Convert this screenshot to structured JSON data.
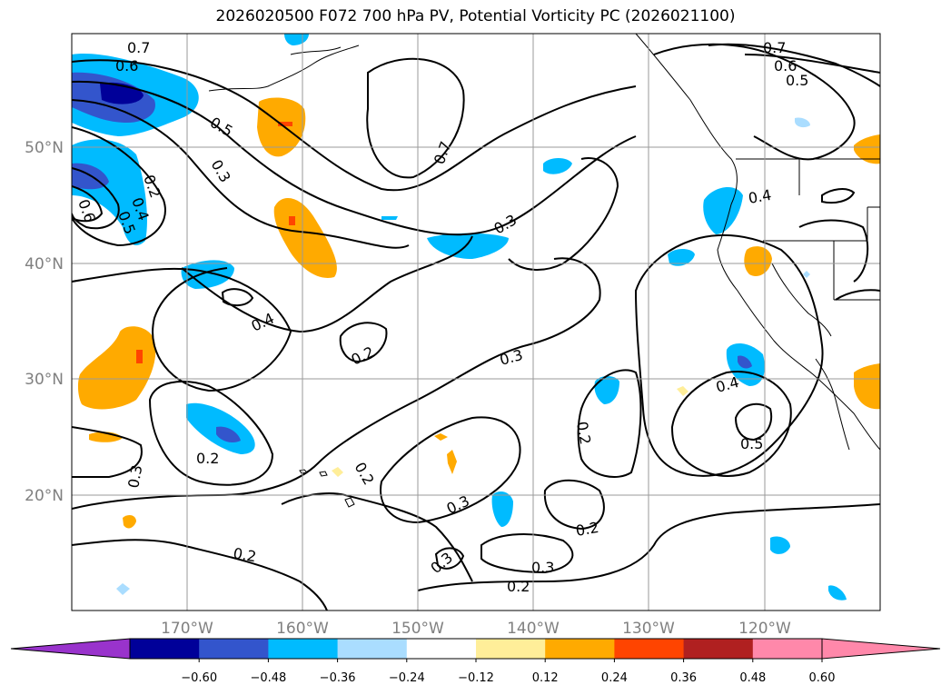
{
  "title": "2026020500 F072 700 hPa PV, Potential Vorticity PC (2026021100)",
  "latitude_labels": [
    "50°N",
    "40°N",
    "30°N",
    "20°N"
  ],
  "longitude_labels": [
    "170°W",
    "160°W",
    "150°W",
    "140°W",
    "130°W",
    "120°W"
  ],
  "contour_labels": [
    "0.7",
    "0.6",
    "0.5",
    "0.3",
    "0.2",
    "0.4",
    "0.6",
    "0.5",
    "0.7",
    "0.7",
    "0.6",
    "0.5",
    "0.4",
    "0.3",
    "0.4",
    "0.2",
    "0.3",
    "0.2",
    "0.4",
    "0.5",
    "0.3",
    "0.2",
    "0.2",
    "0.3",
    "0.2",
    "0.3",
    "0.3",
    "0.2",
    "0.2"
  ],
  "colorbar": {
    "tick_labels": [
      "−0.60",
      "−0.48",
      "−0.36",
      "−0.24",
      "−0.12",
      "0.12",
      "0.24",
      "0.36",
      "0.48",
      "0.60"
    ],
    "colors": [
      "#9933cc",
      "#000099",
      "#3355cc",
      "#00bbff",
      "#aaddff",
      "#ffffff",
      "#ffee99",
      "#ffaa00",
      "#ff4400",
      "#b02020",
      "#ff88aa",
      "#ff88aa"
    ]
  }
}
